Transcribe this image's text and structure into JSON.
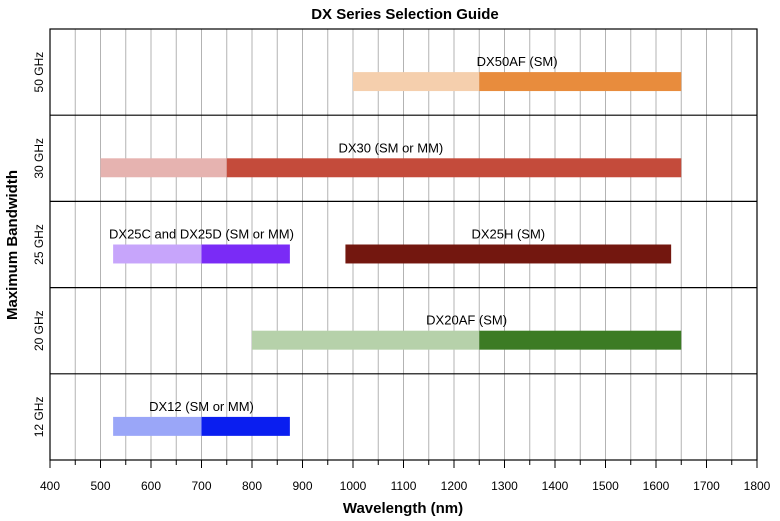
{
  "chart_data": {
    "type": "bar",
    "title": "DX Series Selection Guide",
    "xlabel": "Wavelength (nm)",
    "ylabel": "Maximum Bandwidth",
    "xlim": [
      400,
      1800
    ],
    "x_ticks": [
      400,
      500,
      600,
      700,
      800,
      900,
      1000,
      1100,
      1200,
      1300,
      1400,
      1500,
      1600,
      1700,
      1800
    ],
    "x_ticks_text": [
      "400",
      "500",
      "600",
      "700",
      "800",
      "900",
      "1000",
      "1100",
      "1200",
      "1300",
      "1400",
      "1500",
      "1600",
      "1700",
      "1800"
    ],
    "grid": true,
    "rows": [
      {
        "label": "50 GHz",
        "bars": [
          {
            "name": "DX50AF (SM)",
            "light_range": [
              1000,
              1250
            ],
            "dark_range": [
              1250,
              1650
            ],
            "light_color": "#f5cfad",
            "dark_color": "#e88c3d"
          }
        ]
      },
      {
        "label": "30 GHz",
        "bars": [
          {
            "name": "DX30 (SM or MM)",
            "light_range": [
              500,
              750
            ],
            "dark_range": [
              750,
              1650
            ],
            "light_color": "#e6b3b0",
            "dark_color": "#c44b3b"
          }
        ]
      },
      {
        "label": "25 GHz",
        "bars": [
          {
            "name": "DX25C and DX25D (SM or MM)",
            "light_range": [
              525,
              700
            ],
            "dark_range": [
              700,
              875
            ],
            "light_color": "#c7a5fb",
            "dark_color": "#7a2bf6"
          },
          {
            "name": "DX25H (SM)",
            "light_range": null,
            "dark_range": [
              985,
              1630
            ],
            "light_color": null,
            "dark_color": "#73170f"
          }
        ]
      },
      {
        "label": "20 GHz",
        "bars": [
          {
            "name": "DX20AF (SM)",
            "light_range": [
              800,
              1250
            ],
            "dark_range": [
              1250,
              1650
            ],
            "light_color": "#b6d1aa",
            "dark_color": "#3c7b24"
          }
        ]
      },
      {
        "label": "12 GHz",
        "bars": [
          {
            "name": "DX12 (SM or MM)",
            "light_range": [
              525,
              700
            ],
            "dark_range": [
              700,
              875
            ],
            "light_color": "#9aa6f8",
            "dark_color": "#0a1ef0"
          }
        ]
      }
    ]
  }
}
